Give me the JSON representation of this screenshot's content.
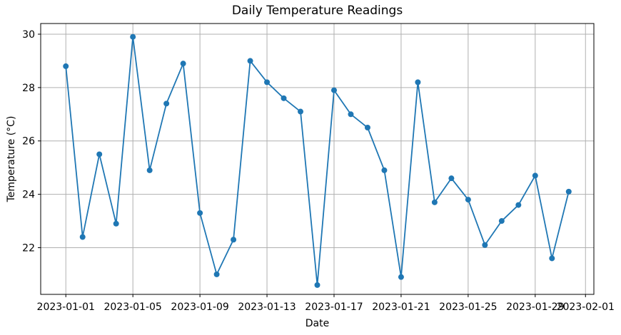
{
  "chart_data": {
    "type": "line",
    "title": "Daily Temperature Readings",
    "xlabel": "Date",
    "ylabel": "Temperature (°C)",
    "grid": true,
    "legend": "none",
    "line_color": "#1f77b4",
    "marker": "circle",
    "grid_color": "#b0b0b0",
    "spine_color": "#000000",
    "x": [
      "2023-01-01",
      "2023-01-02",
      "2023-01-03",
      "2023-01-04",
      "2023-01-05",
      "2023-01-06",
      "2023-01-07",
      "2023-01-08",
      "2023-01-09",
      "2023-01-10",
      "2023-01-11",
      "2023-01-12",
      "2023-01-13",
      "2023-01-14",
      "2023-01-15",
      "2023-01-16",
      "2023-01-17",
      "2023-01-18",
      "2023-01-19",
      "2023-01-20",
      "2023-01-21",
      "2023-01-22",
      "2023-01-23",
      "2023-01-24",
      "2023-01-25",
      "2023-01-26",
      "2023-01-27",
      "2023-01-28",
      "2023-01-29",
      "2023-01-30",
      "2023-01-31"
    ],
    "values": [
      28.8,
      22.4,
      25.5,
      22.9,
      29.9,
      24.9,
      27.4,
      28.9,
      23.3,
      21.0,
      22.3,
      29.0,
      28.2,
      27.6,
      27.1,
      20.6,
      27.9,
      27.0,
      26.5,
      24.9,
      20.9,
      28.2,
      23.7,
      24.6,
      23.8,
      22.1,
      23.0,
      23.6,
      24.7,
      21.6,
      24.1
    ],
    "x_tick_labels": [
      "2023-01-01",
      "2023-01-05",
      "2023-01-09",
      "2023-01-13",
      "2023-01-17",
      "2023-01-21",
      "2023-01-25",
      "2023-01-29",
      "2023-02-01"
    ],
    "x_tick_indices": [
      0,
      4,
      8,
      12,
      16,
      20,
      24,
      28,
      31
    ],
    "y_ticks": [
      22,
      24,
      26,
      28,
      30
    ],
    "ylim": [
      20.25,
      30.4
    ],
    "xlim": [
      -1.5,
      31.5
    ]
  }
}
